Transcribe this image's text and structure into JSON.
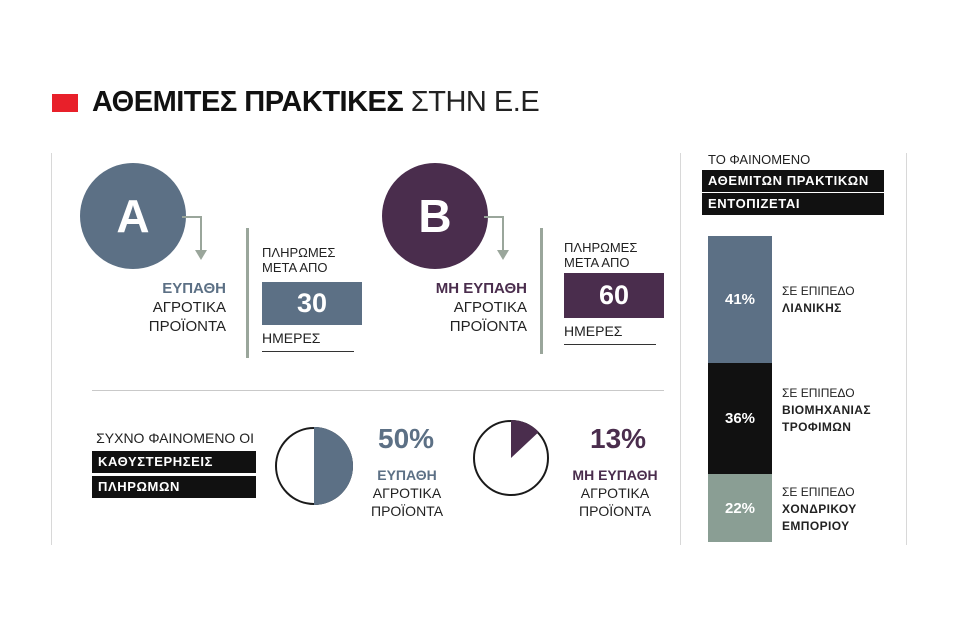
{
  "title": {
    "bold": "ΑΘΕΜΙΤΕΣ ΠΡΑΚΤΙΚΕΣ",
    "light": "ΣΤΗΝ Ε.Ε"
  },
  "colors": {
    "accent": "#e8202a",
    "perishable": "#5c7085",
    "non_perishable": "#4a2d4d",
    "wholesale": "#8a9e94",
    "black": "#111111",
    "bar_gray": "#9aa69b"
  },
  "block_a": {
    "letter": "A",
    "highlight": "ΕΥΠΑΘΗ",
    "line2": "ΑΓΡΟΤΙΚΑ",
    "line3": "ΠΡΟΪΟΝΤΑ",
    "pay_line1": "ΠΛΗΡΩΜΕΣ",
    "pay_line2": "ΜΕΤΑ ΑΠΟ",
    "days": "30",
    "days_label": "ΗΜΕΡΕΣ"
  },
  "block_b": {
    "letter": "B",
    "highlight": "ΜΗ ΕΥΠΑΘΗ",
    "line2": "ΑΓΡΟΤΙΚΑ",
    "line3": "ΠΡΟΪΟΝΤΑ",
    "pay_line1": "ΠΛΗΡΩΜΕΣ",
    "pay_line2": "ΜΕΤΑ ΑΠΟ",
    "days": "60",
    "days_label": "ΗΜΕΡΕΣ"
  },
  "delays": {
    "label": "ΣΥΧΝΟ ΦΑΙΝΟΜΕΝΟ ΟΙ",
    "tag1": "ΚΑΘΥΣΤΕΡΗΣΕΙΣ",
    "tag2": "ΠΛΗΡΩΜΩΝ"
  },
  "pie_perishable": {
    "percent_label": "50%",
    "highlight": "ΕΥΠΑΘΗ",
    "line2": "ΑΓΡΟΤΙΚΑ",
    "line3": "ΠΡΟΪΟΝΤΑ"
  },
  "pie_non_perishable": {
    "percent_label": "13%",
    "highlight": "ΜΗ ΕΥΠΑΘΗ",
    "line2": "ΑΓΡΟΤΙΚΑ",
    "line3": "ΠΡΟΪΟΝΤΑ"
  },
  "right_panel": {
    "label": "ΤΟ ΦΑΙΝΟΜΕΝΟ",
    "tag1": "ΑΘΕΜΙΤΩΝ ΠΡΑΚΤΙΚΩΝ",
    "tag2": "ΕΝΤΟΠΙΖΕΤΑΙ",
    "segments": [
      {
        "value_label": "41%",
        "line1": "ΣΕ ΕΠΙΠΕΔΟ",
        "line2": "ΛΙΑΝΙΚΗΣ",
        "line3": ""
      },
      {
        "value_label": "36%",
        "line1": "ΣΕ ΕΠΙΠΕΔΟ",
        "line2": "ΒΙΟΜΗΧΑΝΙΑΣ",
        "line3": "ΤΡΟΦΙΜΩΝ"
      },
      {
        "value_label": "22%",
        "line1": "ΣΕ ΕΠΙΠΕΔΟ",
        "line2": "ΧΟΝΔΡΙΚΟΥ",
        "line3": "ΕΜΠΟΡΙΟΥ"
      }
    ]
  },
  "chart_data": [
    {
      "type": "pie",
      "categories": [
        "ΕΥΠΑΘΗ ΑΓΡΟΤΙΚΑ ΠΡΟΪΟΝΤΑ"
      ],
      "values": [
        50
      ],
      "color": "#5c7085"
    },
    {
      "type": "pie",
      "categories": [
        "ΜΗ ΕΥΠΑΘΗ ΑΓΡΟΤΙΚΑ ΠΡΟΪΟΝΤΑ"
      ],
      "values": [
        13
      ],
      "color": "#4a2d4d"
    },
    {
      "type": "bar",
      "categories": [
        "ΛΙΑΝΙΚΗΣ",
        "ΒΙΟΜΗΧΑΝΙΑΣ ΤΡΟΦΙΜΩΝ",
        "ΧΟΝΔΡΙΚΟΥ ΕΜΠΟΡΙΟΥ"
      ],
      "values": [
        41,
        36,
        22
      ],
      "colors": [
        "#5c7085",
        "#111111",
        "#8a9e94"
      ]
    }
  ]
}
